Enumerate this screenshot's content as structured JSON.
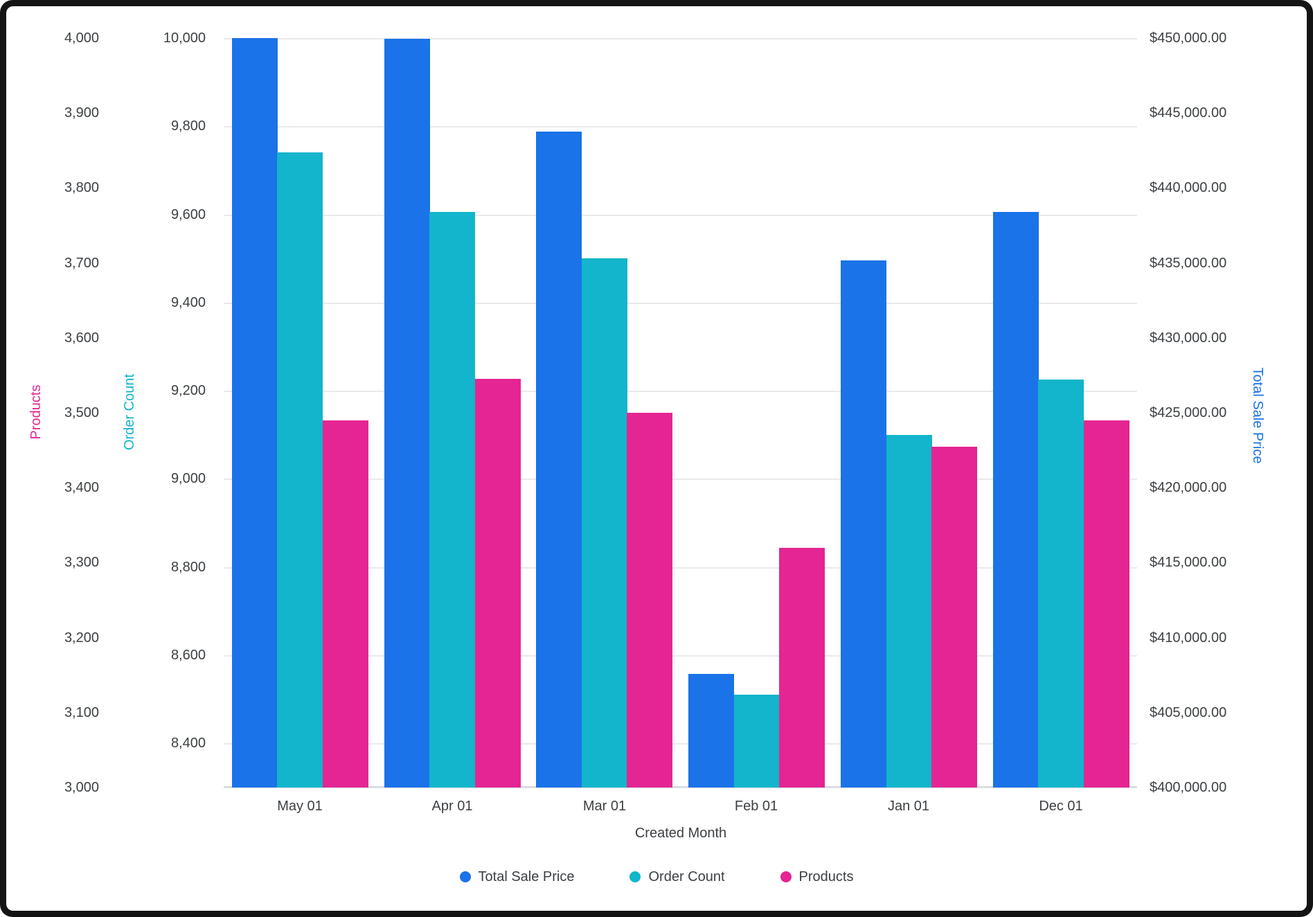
{
  "chart_data": {
    "type": "bar",
    "title": "",
    "x_axis_title": "Created Month",
    "categories": [
      "May 01",
      "Apr 01",
      "Mar 01",
      "Feb 01",
      "Jan 01",
      "Dec 01"
    ],
    "series": [
      {
        "name": "Total Sale Price",
        "axis": "price",
        "color": "#1A73E8",
        "values": [
          450000,
          449950,
          443750,
          407600,
          435150,
          438400
        ]
      },
      {
        "name": "Order Count",
        "axis": "orders",
        "color": "#12B5CB",
        "values": [
          9740,
          9605,
          9500,
          8510,
          9100,
          9225
        ]
      },
      {
        "name": "Products",
        "axis": "products",
        "color": "#E52592",
        "values": [
          3490,
          3545,
          3500,
          3320,
          3455,
          3490
        ]
      }
    ],
    "axes": {
      "products": {
        "title": "Products",
        "side": "left-outer",
        "color": "#E52592",
        "min": 3000,
        "max": 4000,
        "ticks": [
          {
            "v": 3000,
            "label": "3,000"
          },
          {
            "v": 3100,
            "label": "3,100"
          },
          {
            "v": 3200,
            "label": "3,200"
          },
          {
            "v": 3300,
            "label": "3,300"
          },
          {
            "v": 3400,
            "label": "3,400"
          },
          {
            "v": 3500,
            "label": "3,500"
          },
          {
            "v": 3600,
            "label": "3,600"
          },
          {
            "v": 3700,
            "label": "3,700"
          },
          {
            "v": 3800,
            "label": "3,800"
          },
          {
            "v": 3900,
            "label": "3,900"
          },
          {
            "v": 4000,
            "label": "4,000"
          }
        ]
      },
      "orders": {
        "title": "Order Count",
        "side": "left-inner",
        "color": "#12B5CB",
        "min": 8300,
        "max": 10000,
        "ticks": [
          {
            "v": 8400,
            "label": "8,400"
          },
          {
            "v": 8600,
            "label": "8,600"
          },
          {
            "v": 8800,
            "label": "8,800"
          },
          {
            "v": 9000,
            "label": "9,000"
          },
          {
            "v": 9200,
            "label": "9,200"
          },
          {
            "v": 9400,
            "label": "9,400"
          },
          {
            "v": 9600,
            "label": "9,600"
          },
          {
            "v": 9800,
            "label": "9,800"
          },
          {
            "v": 10000,
            "label": "10,000"
          }
        ]
      },
      "price": {
        "title": "Total Sale Price",
        "side": "right",
        "color": "#1A73E8",
        "min": 400000,
        "max": 450000,
        "ticks": [
          {
            "v": 400000,
            "label": "$400,000.00"
          },
          {
            "v": 405000,
            "label": "$405,000.00"
          },
          {
            "v": 410000,
            "label": "$410,000.00"
          },
          {
            "v": 415000,
            "label": "$415,000.00"
          },
          {
            "v": 420000,
            "label": "$420,000.00"
          },
          {
            "v": 425000,
            "label": "$425,000.00"
          },
          {
            "v": 430000,
            "label": "$430,000.00"
          },
          {
            "v": 435000,
            "label": "$435,000.00"
          },
          {
            "v": 440000,
            "label": "$440,000.00"
          },
          {
            "v": 445000,
            "label": "$445,000.00"
          },
          {
            "v": 450000,
            "label": "$450,000.00"
          }
        ]
      }
    },
    "gridlines_axis": "orders",
    "grid": true,
    "legend": {
      "position": "bottom",
      "items": [
        {
          "label": "Total Sale Price",
          "color": "#1A73E8"
        },
        {
          "label": "Order Count",
          "color": "#12B5CB"
        },
        {
          "label": "Products",
          "color": "#E52592"
        }
      ]
    }
  },
  "colors": {
    "frame": "#141414",
    "card": "#ffffff",
    "gridline": "#e9eaec",
    "baseline": "#d9dde3",
    "tick_text": "#3c4043"
  }
}
